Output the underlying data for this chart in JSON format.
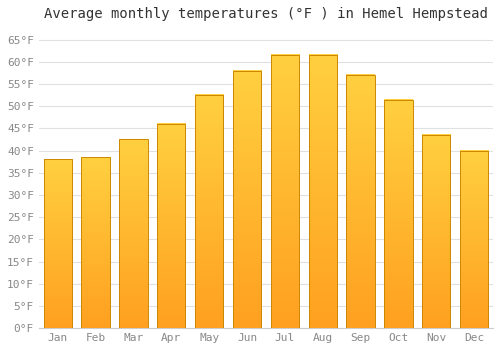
{
  "title": "Average monthly temperatures (°F ) in Hemel Hempstead",
  "months": [
    "Jan",
    "Feb",
    "Mar",
    "Apr",
    "May",
    "Jun",
    "Jul",
    "Aug",
    "Sep",
    "Oct",
    "Nov",
    "Dec"
  ],
  "values": [
    38,
    38.5,
    42.5,
    46,
    52.5,
    58,
    61.5,
    61.5,
    57,
    51.5,
    43.5,
    40
  ],
  "bar_color_bottom": "#FFA020",
  "bar_color_top": "#FFD040",
  "bar_edge_color": "#CC8800",
  "background_color": "#FFFFFF",
  "grid_color": "#E0E0E0",
  "ylim": [
    0,
    68
  ],
  "yticks": [
    0,
    5,
    10,
    15,
    20,
    25,
    30,
    35,
    40,
    45,
    50,
    55,
    60,
    65
  ],
  "ytick_labels": [
    "0°F",
    "5°F",
    "10°F",
    "15°F",
    "20°F",
    "25°F",
    "30°F",
    "35°F",
    "40°F",
    "45°F",
    "50°F",
    "55°F",
    "60°F",
    "65°F"
  ],
  "title_fontsize": 10,
  "tick_fontsize": 8,
  "tick_font_color": "#888888",
  "figsize": [
    5.0,
    3.5
  ],
  "dpi": 100,
  "bar_width": 0.75
}
